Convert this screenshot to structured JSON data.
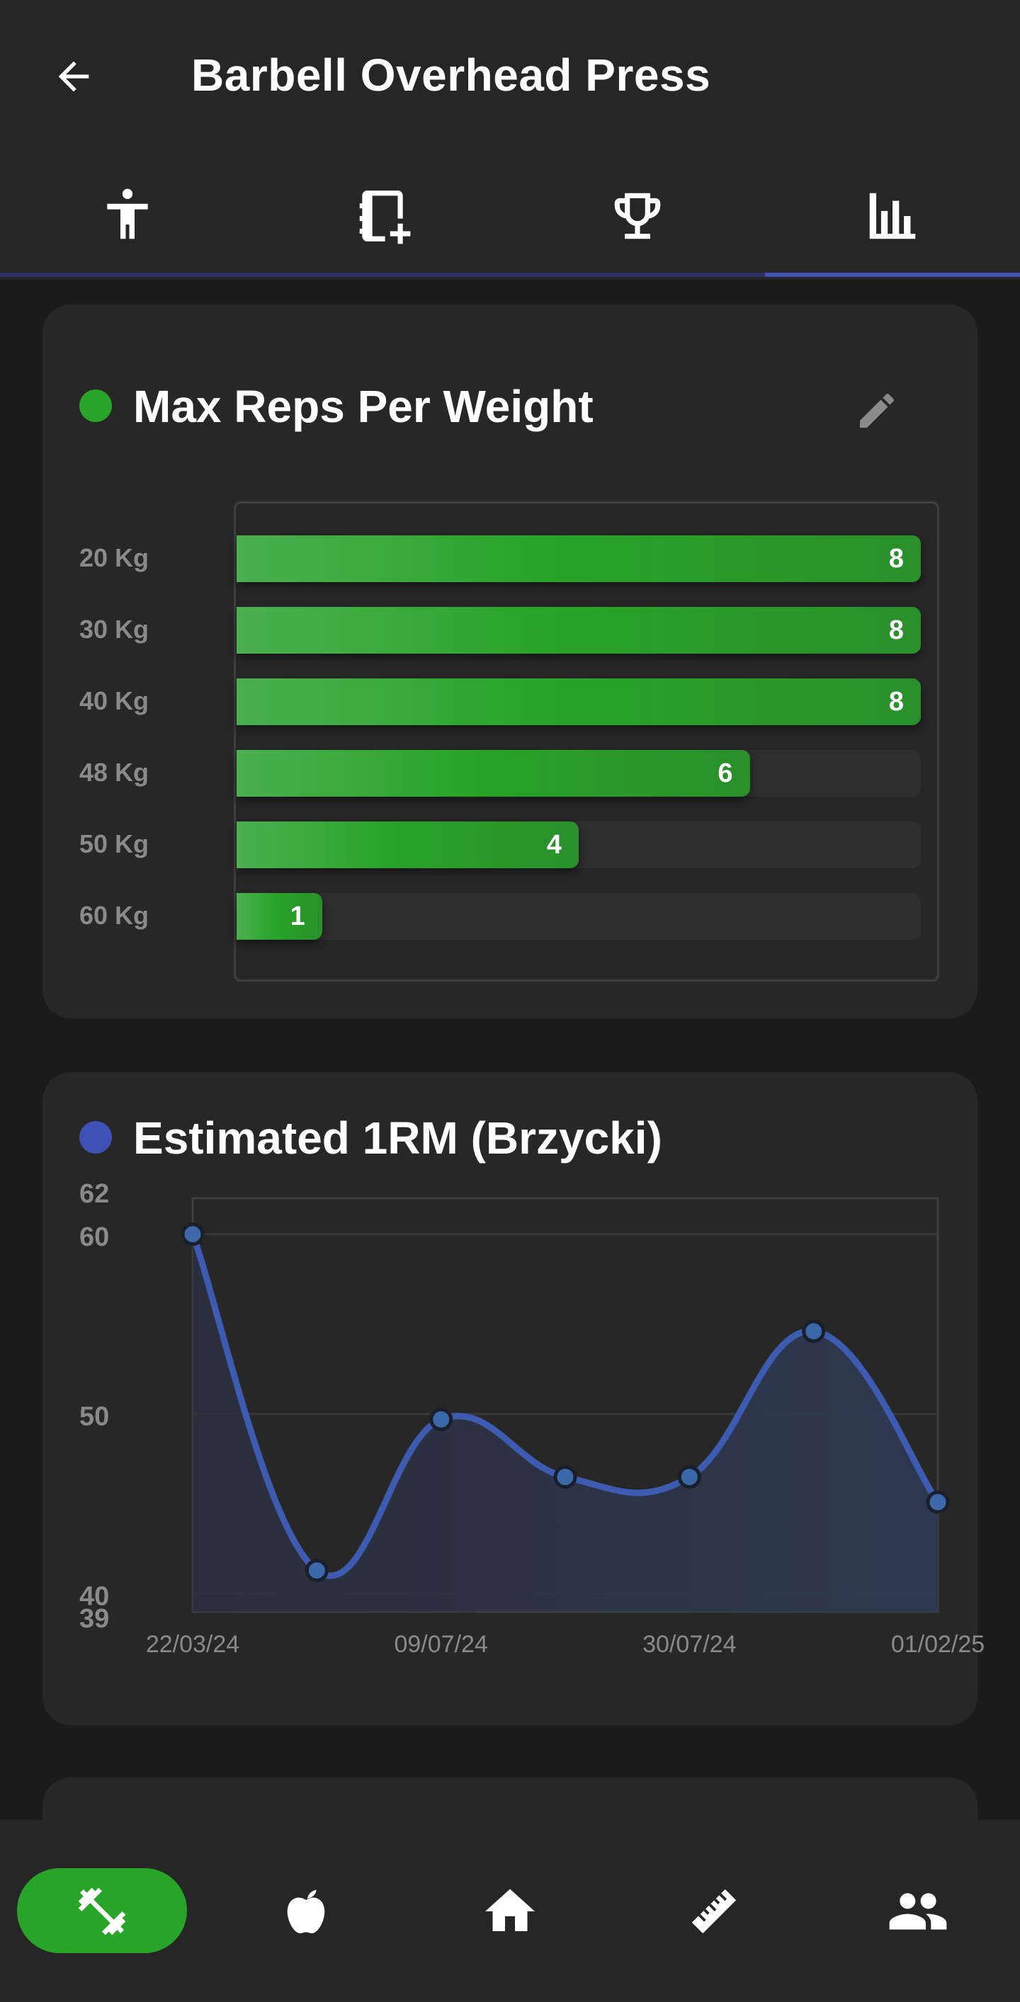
{
  "header": {
    "title": "Barbell Overhead Press",
    "back_icon": "arrow-left-icon"
  },
  "tabs": [
    {
      "id": "info",
      "icon": "person-standing-icon",
      "active": false
    },
    {
      "id": "history",
      "icon": "notebook-plus-icon",
      "active": false
    },
    {
      "id": "records",
      "icon": "trophy-icon",
      "active": false
    },
    {
      "id": "charts",
      "icon": "bar-chart-icon",
      "active": true
    }
  ],
  "colors": {
    "background": "#1b1b1b",
    "surface": "#272727",
    "bar_green": "#28a428",
    "accent_blue": "#3f51b5",
    "line_blue": "#3d5bb0"
  },
  "max_reps_card": {
    "title": "Max Reps Per Weight",
    "dot_color": "#28a428",
    "edit_icon": "pencil-icon",
    "chart_data": {
      "type": "bar",
      "orientation": "horizontal",
      "categories": [
        "20 Kg",
        "30 Kg",
        "40 Kg",
        "48 Kg",
        "50 Kg",
        "60 Kg"
      ],
      "values": [
        8,
        8,
        8,
        6,
        4,
        1
      ],
      "xlim": [
        0,
        8
      ],
      "data_labels": true
    }
  },
  "one_rm_card": {
    "title": "Estimated 1RM (Brzycki)",
    "dot_color": "#3f51b5",
    "chart_data": {
      "type": "line",
      "smooth": true,
      "area_fill": true,
      "x_tick_labels": [
        "22/03/24",
        "09/07/24",
        "30/07/24",
        "01/02/25"
      ],
      "y_tick_labels": [
        "62",
        "60",
        "50",
        "40",
        "39"
      ],
      "ylim": [
        39,
        62
      ],
      "grid": true,
      "series": [
        {
          "values": [
            60,
            41.3,
            49.7,
            46.5,
            46.5,
            54.6,
            45.1
          ]
        }
      ]
    }
  },
  "bottom_nav": [
    {
      "id": "workouts",
      "icon": "dumbbell-icon",
      "active": true
    },
    {
      "id": "nutrition",
      "icon": "apple-icon",
      "active": false
    },
    {
      "id": "home",
      "icon": "home-icon",
      "active": false
    },
    {
      "id": "measurements",
      "icon": "ruler-icon",
      "active": false
    },
    {
      "id": "social",
      "icon": "people-icon",
      "active": false
    }
  ]
}
